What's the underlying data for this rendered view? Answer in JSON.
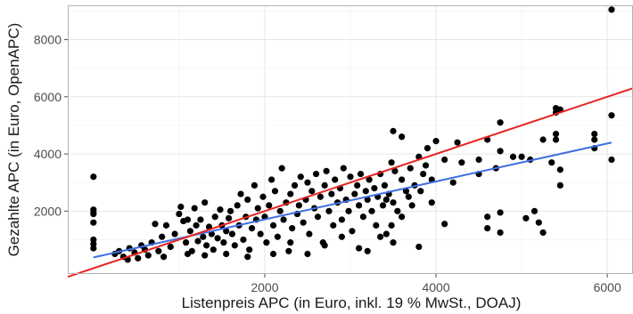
{
  "chart_data": {
    "type": "scatter",
    "xlabel": "Listenpreis APC (in Euro, inkl. 19 % MwSt., DOAJ)",
    "ylabel": "Gezahlte APC (in Euro, OpenAPC)",
    "xlim": [
      -300,
      6300
    ],
    "ylim": [
      -200,
      9200
    ],
    "x_ticks": [
      2000,
      4000,
      6000
    ],
    "y_ticks": [
      2000,
      4000,
      6000,
      8000
    ],
    "x_tick_labels": [
      "2000",
      "4000",
      "6000"
    ],
    "y_tick_labels": [
      "2000",
      "4000",
      "6000",
      "8000"
    ],
    "grid": true,
    "point_color": "#000000",
    "lines": [
      {
        "role": "identity (y = x)",
        "color": "#e8231f",
        "x": [
          -300,
          6300
        ],
        "y": [
          -300,
          6300
        ]
      },
      {
        "role": "linear fit",
        "color": "#3f6fe0",
        "x": [
          0,
          6050
        ],
        "y": [
          380,
          4400
        ]
      }
    ],
    "points": [
      [
        0,
        3200
      ],
      [
        0,
        2050
      ],
      [
        0,
        1950
      ],
      [
        0,
        1900
      ],
      [
        0,
        1600
      ],
      [
        0,
        1000
      ],
      [
        0,
        850
      ],
      [
        0,
        700
      ],
      [
        250,
        500
      ],
      [
        300,
        600
      ],
      [
        350,
        400
      ],
      [
        400,
        300
      ],
      [
        420,
        700
      ],
      [
        480,
        550
      ],
      [
        520,
        350
      ],
      [
        560,
        800
      ],
      [
        600,
        650
      ],
      [
        640,
        450
      ],
      [
        680,
        900
      ],
      [
        720,
        1550
      ],
      [
        760,
        600
      ],
      [
        800,
        1100
      ],
      [
        820,
        400
      ],
      [
        850,
        1500
      ],
      [
        900,
        750
      ],
      [
        950,
        1200
      ],
      [
        1000,
        1900
      ],
      [
        1020,
        2150
      ],
      [
        1050,
        1650
      ],
      [
        1080,
        900
      ],
      [
        1100,
        1700
      ],
      [
        1130,
        1300
      ],
      [
        1150,
        600
      ],
      [
        1180,
        2100
      ],
      [
        1200,
        1500
      ],
      [
        1220,
        950
      ],
      [
        1250,
        1700
      ],
      [
        1280,
        1100
      ],
      [
        1300,
        2300
      ],
      [
        1320,
        800
      ],
      [
        1350,
        1450
      ],
      [
        1380,
        1200
      ],
      [
        1400,
        650
      ],
      [
        1420,
        1800
      ],
      [
        1450,
        1050
      ],
      [
        1480,
        2050
      ],
      [
        1500,
        1500
      ],
      [
        1520,
        900
      ],
      [
        1550,
        1300
      ],
      [
        1580,
        1750
      ],
      [
        1600,
        2000
      ],
      [
        1620,
        1200
      ],
      [
        1650,
        800
      ],
      [
        1680,
        2200
      ],
      [
        1700,
        1500
      ],
      [
        1720,
        2600
      ],
      [
        1750,
        1000
      ],
      [
        1780,
        1800
      ],
      [
        1800,
        2400
      ],
      [
        1820,
        650
      ],
      [
        1850,
        1400
      ],
      [
        1880,
        2900
      ],
      [
        1900,
        1700
      ],
      [
        1920,
        2100
      ],
      [
        1950,
        1200
      ],
      [
        1980,
        2500
      ],
      [
        2000,
        1800
      ],
      [
        2020,
        900
      ],
      [
        2050,
        2200
      ],
      [
        2080,
        3100
      ],
      [
        2100,
        1500
      ],
      [
        2120,
        2700
      ],
      [
        2150,
        1100
      ],
      [
        2180,
        2000
      ],
      [
        2200,
        3500
      ],
      [
        2220,
        1700
      ],
      [
        2250,
        2300
      ],
      [
        2280,
        600
      ],
      [
        2300,
        2600
      ],
      [
        2320,
        1400
      ],
      [
        2350,
        2900
      ],
      [
        2380,
        1900
      ],
      [
        2400,
        2200
      ],
      [
        2420,
        3200
      ],
      [
        2450,
        1600
      ],
      [
        2480,
        2400
      ],
      [
        2500,
        3000
      ],
      [
        2520,
        1200
      ],
      [
        2550,
        2700
      ],
      [
        2580,
        2100
      ],
      [
        2600,
        3300
      ],
      [
        2620,
        1800
      ],
      [
        2650,
        2500
      ],
      [
        2680,
        900
      ],
      [
        2700,
        2900
      ],
      [
        2720,
        3400
      ],
      [
        2750,
        2000
      ],
      [
        2780,
        2600
      ],
      [
        2800,
        1500
      ],
      [
        2820,
        3100
      ],
      [
        2850,
        2300
      ],
      [
        2880,
        2800
      ],
      [
        2900,
        1700
      ],
      [
        2920,
        3500
      ],
      [
        2950,
        2400
      ],
      [
        2980,
        2000
      ],
      [
        3000,
        3200
      ],
      [
        3020,
        1300
      ],
      [
        3050,
        2600
      ],
      [
        3080,
        2900
      ],
      [
        3100,
        2200
      ],
      [
        3120,
        3300
      ],
      [
        3150,
        1800
      ],
      [
        3180,
        2700
      ],
      [
        3200,
        2400
      ],
      [
        3220,
        3100
      ],
      [
        3250,
        2000
      ],
      [
        3280,
        2800
      ],
      [
        3300,
        1500
      ],
      [
        3320,
        2500
      ],
      [
        3350,
        3300
      ],
      [
        3380,
        2200
      ],
      [
        3400,
        2900
      ],
      [
        3420,
        1200
      ],
      [
        3450,
        2600
      ],
      [
        3480,
        3700
      ],
      [
        3500,
        2300
      ],
      [
        3520,
        3400
      ],
      [
        3550,
        2000
      ],
      [
        3600,
        3100
      ],
      [
        3650,
        2700
      ],
      [
        3700,
        3500
      ],
      [
        3750,
        2900
      ],
      [
        3800,
        3900
      ],
      [
        3850,
        3300
      ],
      [
        3900,
        4200
      ],
      [
        3950,
        3100
      ],
      [
        4000,
        4450
      ],
      [
        3950,
        2300
      ],
      [
        3880,
        3600
      ],
      [
        3820,
        2700
      ],
      [
        3720,
        2200
      ],
      [
        3680,
        2500
      ],
      [
        3600,
        1800
      ],
      [
        3500,
        900
      ],
      [
        3480,
        1500
      ],
      [
        3420,
        2400
      ],
      [
        3350,
        1100
      ],
      [
        3200,
        600
      ],
      [
        3100,
        700
      ],
      [
        2900,
        1100
      ],
      [
        2700,
        800
      ],
      [
        2500,
        500
      ],
      [
        2300,
        900
      ],
      [
        2100,
        500
      ],
      [
        1800,
        400
      ],
      [
        1550,
        500
      ],
      [
        1300,
        450
      ],
      [
        1100,
        500
      ],
      [
        3500,
        4800
      ],
      [
        3600,
        4600
      ],
      [
        3800,
        750
      ],
      [
        4100,
        3800
      ],
      [
        4100,
        1550
      ],
      [
        4200,
        3000
      ],
      [
        4250,
        4400
      ],
      [
        4300,
        3700
      ],
      [
        4500,
        3800
      ],
      [
        4500,
        3300
      ],
      [
        4600,
        4500
      ],
      [
        4600,
        1800
      ],
      [
        4600,
        1400
      ],
      [
        4700,
        3500
      ],
      [
        4750,
        5100
      ],
      [
        4750,
        4100
      ],
      [
        4750,
        1950
      ],
      [
        4750,
        1250
      ],
      [
        4900,
        3900
      ],
      [
        5000,
        3900
      ],
      [
        5050,
        1750
      ],
      [
        5100,
        3800
      ],
      [
        5150,
        2000
      ],
      [
        5200,
        1600
      ],
      [
        5250,
        4500
      ],
      [
        5250,
        1250
      ],
      [
        5350,
        3700
      ],
      [
        5400,
        5600
      ],
      [
        5400,
        5450
      ],
      [
        5400,
        4700
      ],
      [
        5400,
        4500
      ],
      [
        5450,
        5550
      ],
      [
        5450,
        3450
      ],
      [
        5450,
        2900
      ],
      [
        5850,
        4700
      ],
      [
        5850,
        4500
      ],
      [
        5850,
        4200
      ],
      [
        6050,
        9050
      ],
      [
        6050,
        5350
      ],
      [
        6050,
        3800
      ]
    ]
  }
}
